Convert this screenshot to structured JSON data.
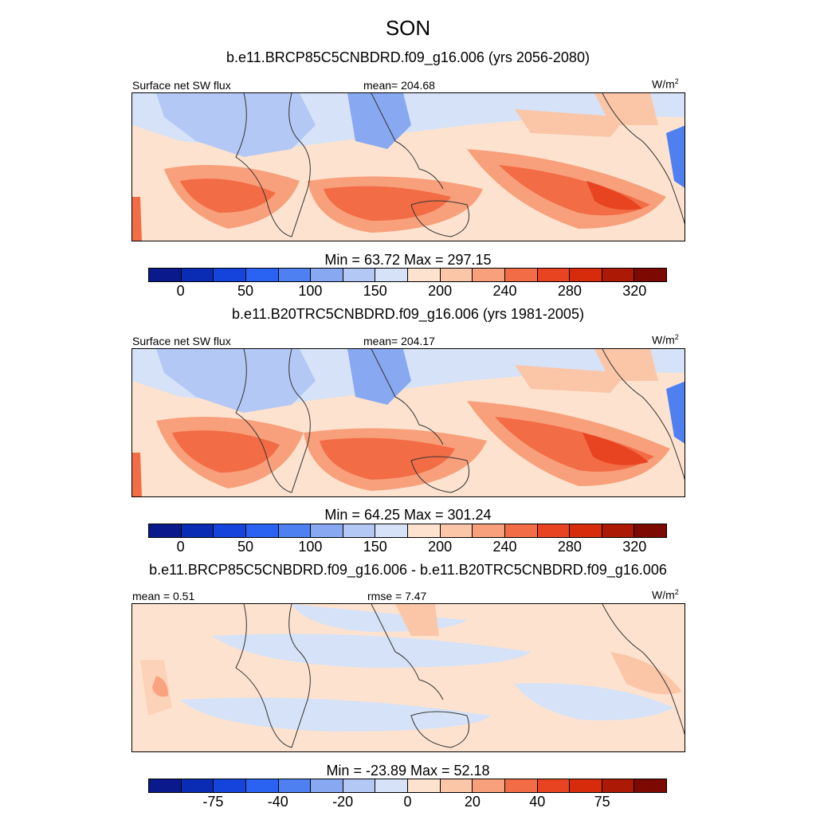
{
  "figure": {
    "title": "SON"
  },
  "panels": [
    {
      "case_title": "b.e11.BRCP85C5CNBDRD.f09_g16.006 (yrs 2056-2080)",
      "left_label": "Surface net SW flux",
      "center_label": "mean= 204.68",
      "right_label_base": "W/m",
      "right_label_sup": "2",
      "stats": "Min =  63.72 Max = 297.15",
      "colorbar_ticks": [
        "0",
        "50",
        "100",
        "150",
        "200",
        "240",
        "280",
        "320"
      ],
      "colorbar_colors": [
        "#0a1a8c",
        "#0a2cb4",
        "#1444dc",
        "#2a62f2",
        "#4f80f2",
        "#88a8f2",
        "#b4c8f5",
        "#d6e2f7",
        "#fde3cf",
        "#fbc6a8",
        "#f89f7b",
        "#f26c45",
        "#e84422",
        "#d62c0c",
        "#ac1a06",
        "#7d0a02"
      ]
    },
    {
      "case_title": "b.e11.B20TRC5CNBDRD.f09_g16.006 (yrs 1981-2005)",
      "left_label": "Surface net SW flux",
      "center_label": "mean= 204.17",
      "right_label_base": "W/m",
      "right_label_sup": "2",
      "stats": "Min =  64.25 Max = 301.24",
      "colorbar_ticks": [
        "0",
        "50",
        "100",
        "150",
        "200",
        "240",
        "280",
        "320"
      ],
      "colorbar_colors": [
        "#0a1a8c",
        "#0a2cb4",
        "#1444dc",
        "#2a62f2",
        "#4f80f2",
        "#88a8f2",
        "#b4c8f5",
        "#d6e2f7",
        "#fde3cf",
        "#fbc6a8",
        "#f89f7b",
        "#f26c45",
        "#e84422",
        "#d62c0c",
        "#ac1a06",
        "#7d0a02"
      ]
    },
    {
      "case_title": "b.e11.BRCP85C5CNBDRD.f09_g16.006 - b.e11.B20TRC5CNBDRD.f09_g16.006",
      "left_label": "mean =   0.51",
      "center_label": "rmse =   7.47",
      "right_label_base": "W/m",
      "right_label_sup": "2",
      "stats": "Min = -23.89 Max =  52.18",
      "colorbar_ticks": [
        "-75",
        "-40",
        "-20",
        "0",
        "20",
        "40",
        "75"
      ],
      "colorbar_colors": [
        "#0a1a8c",
        "#0a2cb4",
        "#1444dc",
        "#2a62f2",
        "#4f80f2",
        "#88a8f2",
        "#b4c8f5",
        "#d6e2f7",
        "#fde3cf",
        "#fbc6a8",
        "#f89f7b",
        "#f26c45",
        "#e84422",
        "#d62c0c",
        "#ac1a06",
        "#7d0a02"
      ]
    }
  ],
  "chart_data": [
    {
      "type": "heatmap",
      "title": "b.e11.BRCP85C5CNBDRD.f09_g16.006 (yrs 2056-2080)",
      "variable": "Surface net SW flux",
      "units": "W/m2",
      "mean": 204.68,
      "min": 63.72,
      "max": 297.15,
      "colorbar_levels": [
        0,
        50,
        100,
        150,
        200,
        240,
        280,
        320
      ]
    },
    {
      "type": "heatmap",
      "title": "b.e11.B20TRC5CNBDRD.f09_g16.006 (yrs 1981-2005)",
      "variable": "Surface net SW flux",
      "units": "W/m2",
      "mean": 204.17,
      "min": 64.25,
      "max": 301.24,
      "colorbar_levels": [
        0,
        50,
        100,
        150,
        200,
        240,
        280,
        320
      ]
    },
    {
      "type": "heatmap",
      "title": "b.e11.BRCP85C5CNBDRD.f09_g16.006 - b.e11.B20TRC5CNBDRD.f09_g16.006",
      "units": "W/m2",
      "mean": 0.51,
      "rmse": 7.47,
      "min": -23.89,
      "max": 52.18,
      "colorbar_levels": [
        -75,
        -40,
        -20,
        0,
        20,
        40,
        75
      ]
    }
  ]
}
